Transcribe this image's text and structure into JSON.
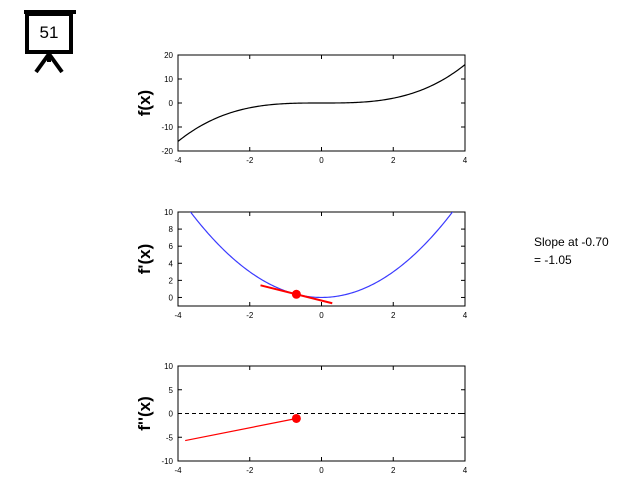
{
  "slide_number": "51",
  "annotation": {
    "line1": "Slope at -0.70",
    "line2": "= -1.05"
  },
  "colors": {
    "f_curve": "#000000",
    "fprime_curve": "#3b3bff",
    "highlight": "#ff0000",
    "zero_line": "#000000"
  },
  "chart_data": [
    {
      "type": "line",
      "ylabel": "f(x)",
      "xlim": [
        -4,
        4
      ],
      "ylim": [
        -20,
        20
      ],
      "x_ticks": [
        -4,
        -2,
        0,
        2,
        4
      ],
      "y_ticks": [
        -20,
        -10,
        0,
        10,
        20
      ],
      "x_tick_labels": [
        "-4",
        "-2",
        "0",
        "2",
        "4"
      ],
      "y_tick_labels": [
        "-20",
        "-10",
        "0",
        "10",
        "20"
      ],
      "function": "x^3/4",
      "series": [
        {
          "x": [
            -4,
            -3,
            -2,
            -1,
            0,
            1,
            2,
            3,
            4
          ],
          "y": [
            -16,
            -6.75,
            -2,
            -0.25,
            0,
            0.25,
            2,
            6.75,
            16
          ]
        }
      ]
    },
    {
      "type": "line",
      "ylabel": "f'(x)",
      "xlim": [
        -4,
        4
      ],
      "ylim": [
        -1,
        10
      ],
      "x_ticks": [
        -4,
        -2,
        0,
        2,
        4
      ],
      "y_ticks": [
        0,
        2,
        4,
        6,
        8,
        10
      ],
      "x_tick_labels": [
        "-4",
        "-2",
        "0",
        "2",
        "4"
      ],
      "y_tick_labels": [
        "0",
        "2",
        "4",
        "6",
        "8",
        "10"
      ],
      "function": "3x^2/4",
      "series": [
        {
          "x": [
            -3.65,
            -3,
            -2,
            -1,
            0,
            1,
            2,
            3,
            3.65
          ],
          "y": [
            10,
            6.75,
            3,
            0.75,
            0,
            0.75,
            3,
            6.75,
            10
          ]
        }
      ],
      "point": {
        "x": -0.7,
        "y": 0.37
      },
      "tangent": {
        "x": [
          -1.7,
          0.3
        ],
        "y": [
          1.42,
          -0.68
        ]
      }
    },
    {
      "type": "line",
      "ylabel": "f''(x)",
      "xlim": [
        -4,
        4
      ],
      "ylim": [
        -10,
        10
      ],
      "x_ticks": [
        -4,
        -2,
        0,
        2,
        4
      ],
      "y_ticks": [
        -10,
        -5,
        0,
        5,
        10
      ],
      "x_tick_labels": [
        "-4",
        "-2",
        "0",
        "2",
        "4"
      ],
      "y_tick_labels": [
        "-10",
        "-5",
        "0",
        "5",
        "10"
      ],
      "zero_line": true,
      "series": [
        {
          "x": [
            -3.8,
            -0.7
          ],
          "y": [
            -5.7,
            -1.05
          ]
        }
      ],
      "point": {
        "x": -0.7,
        "y": -1.05
      }
    }
  ]
}
